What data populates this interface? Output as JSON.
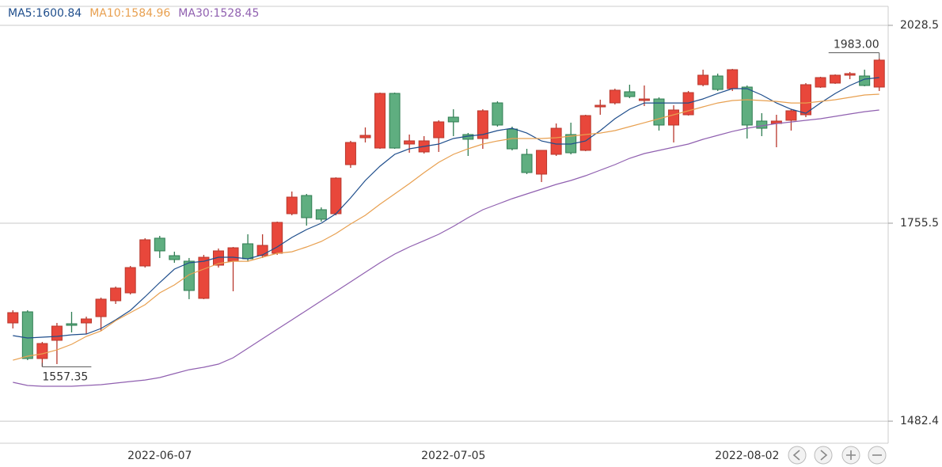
{
  "chart_data": {
    "type": "candlestick",
    "categories": [
      null,
      null,
      null,
      null,
      null,
      null,
      null,
      null,
      null,
      null,
      "2022-06-07",
      null,
      null,
      null,
      null,
      null,
      null,
      null,
      null,
      null,
      null,
      null,
      null,
      null,
      null,
      null,
      null,
      null,
      null,
      null,
      "2022-07-05",
      null,
      null,
      null,
      null,
      null,
      null,
      null,
      null,
      null,
      null,
      null,
      null,
      null,
      null,
      null,
      null,
      null,
      null,
      null,
      "2022-08-02",
      null,
      null,
      null,
      null,
      null,
      null,
      null,
      null,
      null
    ],
    "candles": {
      "open": [
        1617.9,
        1633.2,
        1568.8,
        1593.9,
        1616.8,
        1617.9,
        1626.6,
        1648.5,
        1659.4,
        1696.5,
        1734.8,
        1710.7,
        1703.1,
        1651.8,
        1697.6,
        1703.1,
        1727.1,
        1710.7,
        1714.0,
        1768.6,
        1793.7,
        1774.1,
        1768.6,
        1836.3,
        1873.4,
        1859.2,
        1934.6,
        1864.7,
        1853.8,
        1873.4,
        1901.8,
        1877.8,
        1872.3,
        1921.5,
        1885.4,
        1850.5,
        1823.2,
        1850.5,
        1877.8,
        1856.0,
        1916.0,
        1921.5,
        1936.8,
        1924.8,
        1926.9,
        1890.9,
        1905.1,
        1946.6,
        1958.6,
        1941.1,
        1943.3,
        1896.4,
        1893.1,
        1897.5,
        1905.1,
        1943.3,
        1948.8,
        1959.7,
        1958.6,
        1943.3
      ],
      "high": [
        1635.4,
        1635.4,
        1591.7,
        1617.9,
        1633.2,
        1626.6,
        1652.9,
        1668.1,
        1696.5,
        1734.8,
        1738.0,
        1716.2,
        1707.5,
        1711.8,
        1720.6,
        1722.7,
        1740.2,
        1740.2,
        1757.7,
        1799.2,
        1795.9,
        1777.3,
        1818.8,
        1869.1,
        1887.6,
        1935.7,
        1935.7,
        1877.8,
        1875.6,
        1897.5,
        1912.7,
        1880.0,
        1912.7,
        1923.7,
        1888.7,
        1858.1,
        1856.0,
        1893.1,
        1894.2,
        1905.1,
        1925.9,
        1941.1,
        1946.6,
        1945.5,
        1929.1,
        1918.2,
        1937.9,
        1967.3,
        1961.9,
        1968.4,
        1945.5,
        1907.3,
        1905.1,
        1912.7,
        1948.8,
        1957.5,
        1960.8,
        1964.1,
        1967.3,
        1983
      ],
      "low": [
        1610.3,
        1566.6,
        1557.35,
        1561.1,
        1604.8,
        1602.6,
        1607.0,
        1644.1,
        1657.2,
        1694.3,
        1707.5,
        1700.9,
        1650.7,
        1650.7,
        1694.3,
        1661.6,
        1703.1,
        1707.5,
        1711.8,
        1766.4,
        1752.2,
        1757.7,
        1766.4,
        1831.9,
        1866.9,
        1858.1,
        1858.1,
        1852.7,
        1851.6,
        1853.8,
        1875.6,
        1848.3,
        1858.1,
        1888.7,
        1856.0,
        1823.2,
        1812.3,
        1848.3,
        1850.5,
        1854.9,
        1905.1,
        1919.3,
        1928.0,
        1917.1,
        1883.3,
        1866.9,
        1904.0,
        1944.4,
        1937.9,
        1937.9,
        1872.3,
        1875.6,
        1860.3,
        1883.3,
        1901.8,
        1942.2,
        1947.7,
        1954.2,
        1944.4,
        1937.9
      ],
      "close": [
        1632.1,
        1568.8,
        1589.5,
        1613.5,
        1614.6,
        1623.4,
        1650.7,
        1666.0,
        1694.3,
        1732.6,
        1717.3,
        1705.3,
        1662.7,
        1708.5,
        1717.3,
        1721.6,
        1706.4,
        1724.9,
        1756.6,
        1791.5,
        1763.1,
        1761.0,
        1817.7,
        1866.9,
        1876.7,
        1934.6,
        1859.2,
        1869.1,
        1869.1,
        1895.3,
        1895.3,
        1871.3,
        1910.6,
        1890.9,
        1858.1,
        1825.4,
        1856.0,
        1886.5,
        1852.7,
        1904.0,
        1918.2,
        1939.0,
        1930.2,
        1926.9,
        1890.9,
        1911.7,
        1935.7,
        1959.7,
        1940.0,
        1967.3,
        1890.9,
        1886.5,
        1896.4,
        1910.6,
        1946.6,
        1956.4,
        1959.7,
        1961.9,
        1945.5,
        1980.5
      ],
      "up_color": "#e8473b",
      "up_edge": "#b8382d",
      "down_color": "#5fae80",
      "down_edge": "#2f7d52"
    },
    "series": [
      {
        "name": "MA5:1600.84",
        "color": "#1f4e8c",
        "values": [
          1600.4,
          1597.1,
          1598.2,
          1599.3,
          1601.5,
          1602.6,
          1610.2,
          1622.2,
          1635.3,
          1653.9,
          1673.6,
          1692.1,
          1700.9,
          1703.0,
          1708.5,
          1708.5,
          1706.3,
          1711.8,
          1722.7,
          1735.8,
          1746.7,
          1755.5,
          1768.6,
          1790.4,
          1814.4,
          1834.1,
          1850.5,
          1858.1,
          1861.4,
          1864.7,
          1872.3,
          1875.6,
          1877.8,
          1883.2,
          1886.5,
          1879.9,
          1869.0,
          1864.7,
          1864.7,
          1869.0,
          1883.2,
          1899.6,
          1912.7,
          1921.4,
          1921.4,
          1921.4,
          1921.4,
          1926.9,
          1934.5,
          1941.1,
          1941.1,
          1932.4,
          1921.4,
          1912.7,
          1907.2,
          1921.4,
          1934.5,
          1945.5,
          1954.2,
          1956.4
        ]
      },
      {
        "name": "MA10:1584.96",
        "color": "#e8a050",
        "values": [
          1566.5,
          1572.0,
          1575.3,
          1580.7,
          1588.4,
          1599.3,
          1606.9,
          1621.1,
          1632.1,
          1643.0,
          1659.4,
          1670.3,
          1684.5,
          1692.1,
          1699.8,
          1703.0,
          1703.0,
          1708.5,
          1714.0,
          1716.1,
          1722.7,
          1730.3,
          1741.3,
          1754.4,
          1766.4,
          1781.7,
          1795.9,
          1810.1,
          1825.3,
          1839.5,
          1850.5,
          1858.1,
          1864.7,
          1869.0,
          1872.3,
          1872.3,
          1872.3,
          1873.4,
          1875.6,
          1877.8,
          1879.9,
          1883.2,
          1888.7,
          1894.1,
          1899.6,
          1905.1,
          1910.5,
          1916.0,
          1921.4,
          1924.7,
          1925.8,
          1924.7,
          1923.6,
          1921.4,
          1921.4,
          1923.6,
          1925.8,
          1929.1,
          1932.4,
          1933.5
        ]
      },
      {
        "name": "MA30:1528.45",
        "color": "#9060b0",
        "values": [
          1536.0,
          1531.6,
          1530.5,
          1530.5,
          1530.5,
          1531.6,
          1532.7,
          1534.9,
          1537.1,
          1539.2,
          1542.5,
          1548.0,
          1553.4,
          1556.7,
          1561.1,
          1569.8,
          1582.9,
          1596.0,
          1609.1,
          1622.2,
          1635.3,
          1648.4,
          1661.5,
          1674.6,
          1687.8,
          1700.9,
          1712.9,
          1722.7,
          1731.4,
          1740.2,
          1751.1,
          1763.1,
          1774.0,
          1781.7,
          1789.3,
          1795.9,
          1802.4,
          1809.0,
          1814.4,
          1821.0,
          1828.6,
          1836.3,
          1845.0,
          1851.6,
          1855.9,
          1860.3,
          1864.7,
          1871.2,
          1876.7,
          1882.1,
          1886.5,
          1889.8,
          1893.0,
          1895.2,
          1897.4,
          1899.6,
          1902.9,
          1906.2,
          1909.4,
          1911.6
        ]
      }
    ],
    "high_label": {
      "value": 1983,
      "label": "1983.00"
    },
    "low_label": {
      "value": 1557.35,
      "label": "1557.35"
    },
    "ylim": [
      1451.9,
      2054.7
    ],
    "yticks": [
      1482.4,
      1755.5,
      2028.5
    ],
    "grid": true
  }
}
